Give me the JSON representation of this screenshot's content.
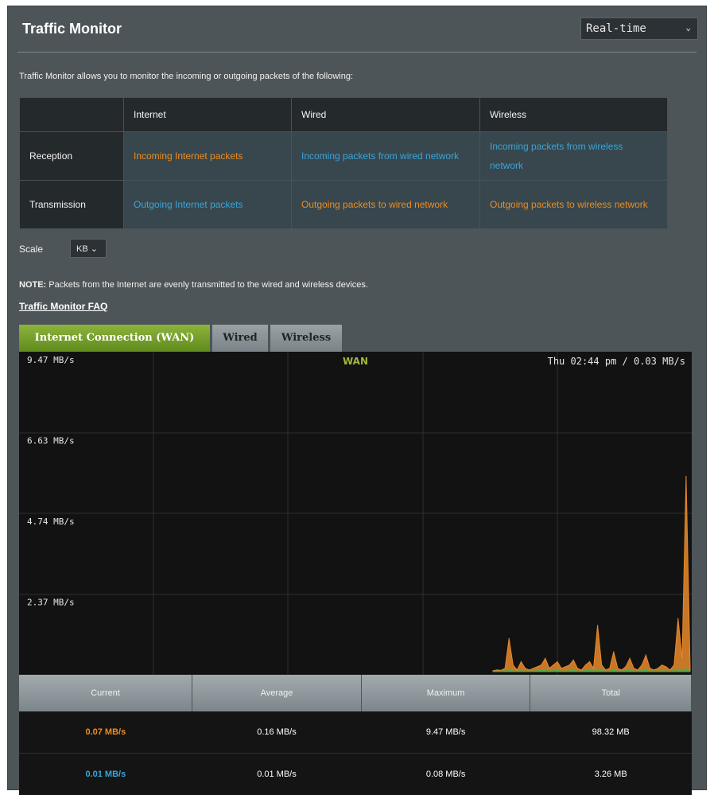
{
  "header": {
    "title": "Traffic Monitor",
    "range_select": "Real-time"
  },
  "description": "Traffic Monitor allows you to monitor the incoming or outgoing packets of the following:",
  "info_table": {
    "columns": [
      "Internet",
      "Wired",
      "Wireless"
    ],
    "rows": [
      {
        "label": "Reception",
        "cells": [
          {
            "text": "Incoming Internet packets",
            "color": "#ef8b1f"
          },
          {
            "text": "Incoming packets from wired network",
            "color": "#3aa4d9"
          },
          {
            "text": "Incoming packets from wireless network",
            "color": "#3aa4d9"
          }
        ]
      },
      {
        "label": "Transmission",
        "cells": [
          {
            "text": "Outgoing Internet packets",
            "color": "#3aa4d9"
          },
          {
            "text": "Outgoing packets to wired network",
            "color": "#ef8b1f"
          },
          {
            "text": "Outgoing packets to wireless network",
            "color": "#ef8b1f"
          }
        ]
      }
    ]
  },
  "scale": {
    "label": "Scale",
    "value": "KB"
  },
  "note": {
    "prefix": "NOTE:",
    "text": " Packets from the Internet are evenly transmitted to the wired and wireless devices."
  },
  "faq_link": "Traffic Monitor FAQ",
  "tabs": [
    {
      "label": "Internet Connection (WAN)",
      "active": true
    },
    {
      "label": "Wired",
      "active": false
    },
    {
      "label": "Wireless",
      "active": false
    }
  ],
  "chart_data": {
    "type": "area",
    "title": "WAN",
    "status_text": "Thu 02:44 pm / 0.03 MB/s",
    "yticks": [
      "9.47 MB/s",
      "6.63 MB/s",
      "4.74 MB/s",
      "2.37 MB/s"
    ],
    "ylim": [
      0,
      9.47
    ],
    "x": [
      0,
      1,
      2,
      3,
      4,
      5,
      6,
      7,
      8,
      9,
      10,
      11,
      12,
      13,
      14,
      15,
      16,
      17,
      18,
      19,
      20,
      21,
      22,
      23,
      24,
      25,
      26,
      27,
      28,
      29,
      30,
      31,
      32,
      33,
      34,
      35,
      36,
      37,
      38,
      39,
      40,
      41,
      42,
      43,
      44,
      45,
      46,
      47,
      48,
      49
    ],
    "series": [
      {
        "color": "#e8892a",
        "values": [
          0.03,
          0.05,
          0.04,
          0.1,
          1.0,
          0.2,
          0.05,
          0.3,
          0.1,
          0.05,
          0.1,
          0.15,
          0.2,
          0.4,
          0.1,
          0.2,
          0.3,
          0.1,
          0.15,
          0.2,
          0.35,
          0.1,
          0.05,
          0.2,
          0.3,
          0.1,
          1.4,
          0.2,
          0.05,
          0.1,
          0.6,
          0.1,
          0.05,
          0.15,
          0.4,
          0.1,
          0.05,
          0.2,
          0.5,
          0.1,
          0.05,
          0.1,
          0.2,
          0.15,
          0.05,
          0.2,
          1.6,
          0.4,
          5.9,
          0.1
        ]
      },
      {
        "color": "#4cae4c",
        "values": [
          0.02,
          0.02,
          0.02,
          0.02,
          0.05,
          0.02,
          0.02,
          0.03,
          0.02,
          0.02,
          0.02,
          0.03,
          0.03,
          0.04,
          0.02,
          0.03,
          0.04,
          0.02,
          0.02,
          0.03,
          0.04,
          0.02,
          0.02,
          0.03,
          0.04,
          0.02,
          0.08,
          0.03,
          0.02,
          0.02,
          0.05,
          0.02,
          0.02,
          0.03,
          0.04,
          0.02,
          0.02,
          0.03,
          0.04,
          0.02,
          0.02,
          0.02,
          0.03,
          0.02,
          0.02,
          0.03,
          0.08,
          0.04,
          0.1,
          0.02
        ]
      }
    ]
  },
  "stats": {
    "headers": [
      "Current",
      "Average",
      "Maximum",
      "Total"
    ],
    "rows": [
      {
        "cells": [
          "0.07 MB/s",
          "0.16 MB/s",
          "9.47 MB/s",
          "98.32 MB"
        ],
        "current_color": "#ef8b1f"
      },
      {
        "cells": [
          "0.01 MB/s",
          "0.01 MB/s",
          "0.08 MB/s",
          "3.26 MB"
        ],
        "current_color": "#3aa4d9"
      }
    ]
  }
}
